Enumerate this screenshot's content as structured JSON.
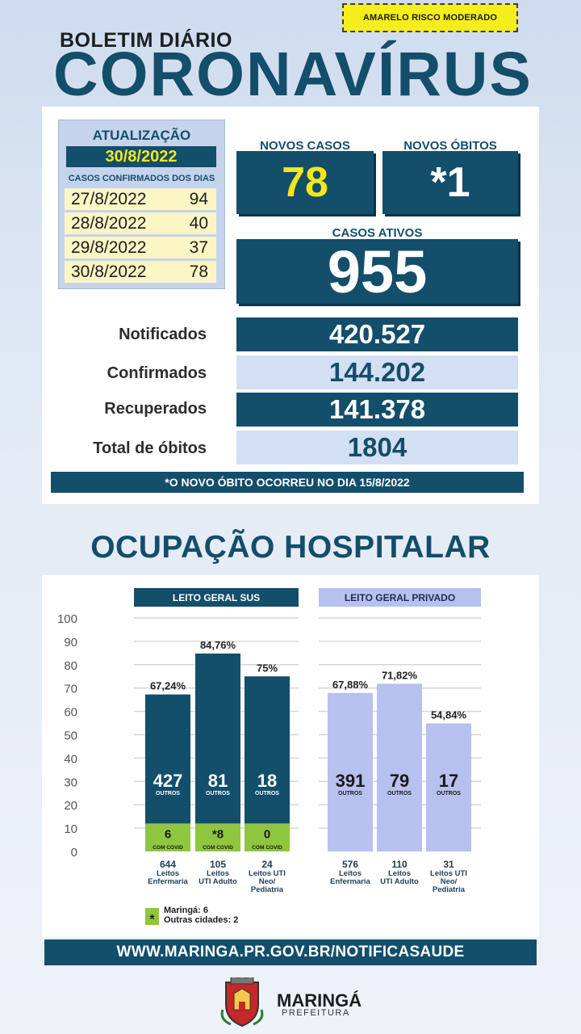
{
  "risk_badge": "AMARELO RISCO MODERADO",
  "header": {
    "subtitle": "BOLETIM DIÁRIO",
    "title": "CORONAVÍRUS"
  },
  "update": {
    "label": "ATUALIZAÇÃO",
    "date": "30/8/2022",
    "confirmed_label": "CASOS CONFIRMADOS DOS DIAS",
    "days": [
      {
        "date": "27/8/2022",
        "count": "94"
      },
      {
        "date": "28/8/2022",
        "count": "40"
      },
      {
        "date": "29/8/2022",
        "count": "37"
      },
      {
        "date": "30/8/2022",
        "count": "78"
      }
    ]
  },
  "new_cases": {
    "label": "NOVOS CASOS",
    "value": "78"
  },
  "new_deaths": {
    "label": "NOVOS ÓBITOS",
    "value": "*1"
  },
  "active_cases": {
    "label": "CASOS ATIVOS",
    "value": "955"
  },
  "stats": [
    {
      "label": "Notificados",
      "value": "420.527"
    },
    {
      "label": "Confirmados",
      "value": "144.202"
    },
    {
      "label": "Recuperados",
      "value": "141.378"
    },
    {
      "label": "Total de óbitos",
      "value": "1804"
    }
  ],
  "note": "*O NOVO  ÓBITO OCORREU NO DIA 15/8/2022",
  "hospital_title": "OCUPAÇÃO HOSPITALAR",
  "chart_data": {
    "type": "bar",
    "ylim": [
      0,
      100
    ],
    "yticks": [
      0,
      10,
      20,
      30,
      40,
      50,
      60,
      70,
      80,
      90,
      100
    ],
    "groups": [
      {
        "name": "LEITO GERAL SUS",
        "bars": [
          {
            "pct": 67.24,
            "pct_label": "67,24%",
            "outros": "427",
            "covid": "6",
            "beds": "644",
            "bed_label": [
              "Leitos",
              "Enfermaria"
            ]
          },
          {
            "pct": 84.76,
            "pct_label": "84,76%",
            "outros": "81",
            "covid": "*8",
            "beds": "105",
            "bed_label": [
              "Leitos",
              "UTI Adulto"
            ]
          },
          {
            "pct": 75,
            "pct_label": "75%",
            "outros": "18",
            "covid": "0",
            "beds": "24",
            "bed_label": [
              "Leitos UTI",
              "Neo/",
              "Pediatria"
            ]
          }
        ]
      },
      {
        "name": "LEITO GERAL PRIVADO",
        "bars": [
          {
            "pct": 67.88,
            "pct_label": "67,88%",
            "outros": "391",
            "beds": "576",
            "bed_label": [
              "Leitos",
              "Enfermaria"
            ]
          },
          {
            "pct": 71.82,
            "pct_label": "71,82%",
            "outros": "79",
            "beds": "110",
            "bed_label": [
              "Leitos",
              "UTI Adulto"
            ]
          },
          {
            "pct": 54.84,
            "pct_label": "54,84%",
            "outros": "17",
            "beds": "31",
            "bed_label": [
              "Leitos UTI",
              "Neo/",
              "Pediatria"
            ]
          }
        ]
      }
    ],
    "outros_label": "OUTROS",
    "covid_label": "COM COVID",
    "covid_share_sus": 0.12,
    "colors": {
      "sus": "#134e6b",
      "covid": "#8ec63f",
      "privado": "#b7c1ef",
      "grid": "#d6d6d6"
    },
    "footnote": {
      "mark": "*",
      "lines": [
        "Maringá: 6",
        "Outras cidades: 2"
      ]
    }
  },
  "website": "WWW.MARINGA.PR.GOV.BR/NOTIFICASAUDE",
  "logo": {
    "name": "MARINGÁ",
    "sub": "PREFEITURA"
  }
}
